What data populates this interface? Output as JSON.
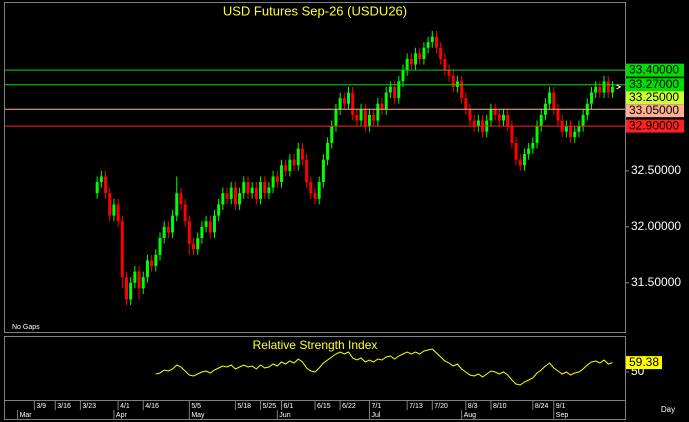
{
  "chart_data": [
    {
      "type": "candlestick",
      "title": "USD Futures Sep-26 (USDU26)",
      "annotation": "No Gaps",
      "up_color": "#00ff00",
      "down_color": "#ff0000",
      "x": [
        15,
        16,
        17,
        18,
        19,
        20,
        21,
        22,
        23,
        24,
        25,
        26,
        27,
        28,
        29,
        30,
        31,
        32,
        33,
        34,
        35,
        36,
        37,
        38,
        39,
        40,
        41,
        42,
        43,
        44,
        45,
        46,
        47,
        48,
        49,
        50,
        51,
        52,
        53,
        54,
        55,
        56,
        57,
        58,
        59,
        60,
        61,
        62,
        63,
        64,
        65,
        66,
        67,
        68,
        69,
        70,
        71,
        72,
        73,
        74,
        75,
        76,
        77,
        78,
        79,
        80,
        81,
        82,
        83,
        84,
        85,
        86,
        87,
        88,
        89,
        90,
        91,
        92,
        93,
        94,
        95,
        96,
        97,
        98,
        99,
        100,
        101,
        102,
        103,
        104,
        105,
        106,
        107,
        108,
        109,
        110,
        111,
        112,
        113,
        114,
        115,
        116,
        117,
        118,
        119,
        120,
        121,
        122,
        123,
        124,
        125,
        126,
        127,
        128,
        129,
        130,
        131,
        132,
        133,
        134,
        135,
        136,
        137,
        138
      ],
      "open": [
        32.3,
        32.4,
        32.45,
        32.3,
        32.1,
        32.2,
        32.05,
        31.55,
        31.35,
        31.5,
        31.6,
        31.45,
        31.55,
        31.7,
        31.65,
        31.75,
        31.9,
        32.0,
        31.95,
        32.1,
        32.3,
        32.2,
        32.05,
        31.85,
        31.8,
        31.9,
        32.0,
        32.05,
        31.95,
        32.1,
        32.2,
        32.3,
        32.25,
        32.35,
        32.2,
        32.3,
        32.4,
        32.3,
        32.35,
        32.25,
        32.4,
        32.3,
        32.35,
        32.45,
        32.4,
        32.55,
        32.5,
        32.6,
        32.55,
        32.7,
        32.6,
        32.4,
        32.3,
        32.25,
        32.4,
        32.6,
        32.75,
        32.9,
        33.05,
        33.15,
        33.1,
        33.2,
        33.0,
        32.95,
        33.05,
        32.9,
        33.0,
        32.95,
        33.1,
        33.05,
        33.2,
        33.25,
        33.15,
        33.3,
        33.4,
        33.5,
        33.45,
        33.55,
        33.5,
        33.6,
        33.65,
        33.7,
        33.6,
        33.5,
        33.4,
        33.35,
        33.25,
        33.3,
        33.15,
        33.05,
        32.95,
        32.9,
        32.95,
        32.85,
        32.95,
        33.05,
        33.0,
        32.95,
        33.0,
        32.9,
        32.75,
        32.6,
        32.55,
        32.65,
        32.7,
        32.75,
        32.9,
        33.0,
        33.1,
        33.2,
        33.05,
        32.95,
        32.85,
        32.9,
        32.8,
        32.85,
        32.9,
        33.0,
        33.1,
        33.2,
        33.25,
        33.2,
        33.3,
        33.2
      ],
      "high": [
        32.45,
        32.5,
        32.5,
        32.35,
        32.25,
        32.25,
        32.1,
        31.6,
        31.55,
        31.65,
        31.65,
        31.6,
        31.75,
        31.75,
        31.8,
        31.95,
        32.05,
        32.05,
        32.15,
        32.45,
        32.35,
        32.25,
        32.1,
        31.9,
        31.95,
        32.05,
        32.1,
        32.1,
        32.15,
        32.25,
        32.35,
        32.35,
        32.4,
        32.4,
        32.35,
        32.45,
        32.45,
        32.4,
        32.4,
        32.45,
        32.45,
        32.4,
        32.5,
        32.5,
        32.6,
        32.6,
        32.65,
        32.65,
        32.75,
        32.75,
        32.65,
        32.45,
        32.35,
        32.45,
        32.65,
        32.8,
        32.95,
        33.1,
        33.2,
        33.2,
        33.25,
        33.25,
        33.05,
        33.1,
        33.1,
        33.05,
        33.05,
        33.15,
        33.15,
        33.25,
        33.3,
        33.3,
        33.35,
        33.45,
        33.55,
        33.55,
        33.6,
        33.6,
        33.65,
        33.7,
        33.75,
        33.75,
        33.65,
        33.55,
        33.45,
        33.4,
        33.35,
        33.35,
        33.2,
        33.1,
        33.0,
        33.0,
        33.0,
        33.0,
        33.1,
        33.1,
        33.05,
        33.05,
        33.05,
        32.95,
        32.8,
        32.65,
        32.7,
        32.75,
        32.8,
        32.95,
        33.05,
        33.15,
        33.25,
        33.25,
        33.1,
        33.0,
        32.95,
        32.95,
        32.9,
        32.95,
        33.05,
        33.15,
        33.25,
        33.3,
        33.3,
        33.35,
        33.35,
        33.3
      ],
      "low": [
        32.25,
        32.35,
        32.25,
        32.05,
        32.05,
        32.0,
        31.45,
        31.3,
        31.3,
        31.45,
        31.35,
        31.4,
        31.5,
        31.6,
        31.6,
        31.7,
        31.85,
        31.9,
        31.9,
        32.05,
        32.15,
        32.0,
        31.75,
        31.75,
        31.75,
        31.85,
        31.95,
        31.9,
        31.9,
        32.05,
        32.15,
        32.2,
        32.2,
        32.15,
        32.15,
        32.25,
        32.25,
        32.25,
        32.2,
        32.2,
        32.25,
        32.25,
        32.3,
        32.35,
        32.35,
        32.45,
        32.45,
        32.5,
        32.5,
        32.55,
        32.35,
        32.25,
        32.2,
        32.2,
        32.35,
        32.55,
        32.7,
        32.85,
        33.0,
        33.05,
        33.05,
        32.95,
        32.9,
        32.9,
        32.85,
        32.85,
        32.9,
        32.9,
        33.0,
        33.0,
        33.15,
        33.1,
        33.1,
        33.25,
        33.35,
        33.4,
        33.4,
        33.45,
        33.45,
        33.55,
        33.6,
        33.55,
        33.45,
        33.35,
        33.3,
        33.2,
        33.2,
        33.1,
        33.0,
        32.9,
        32.85,
        32.85,
        32.8,
        32.8,
        32.9,
        32.95,
        32.9,
        32.9,
        32.85,
        32.7,
        32.55,
        32.5,
        32.5,
        32.6,
        32.65,
        32.7,
        32.85,
        32.95,
        33.05,
        33.0,
        32.9,
        32.8,
        32.8,
        32.75,
        32.75,
        32.8,
        32.85,
        32.95,
        33.05,
        33.15,
        33.15,
        33.15,
        33.15,
        33.15
      ],
      "close": [
        32.4,
        32.45,
        32.3,
        32.1,
        32.2,
        32.05,
        31.55,
        31.35,
        31.5,
        31.6,
        31.45,
        31.55,
        31.7,
        31.65,
        31.75,
        31.9,
        32.0,
        31.95,
        32.1,
        32.3,
        32.2,
        32.05,
        31.85,
        31.8,
        31.9,
        32.0,
        32.05,
        31.95,
        32.1,
        32.2,
        32.3,
        32.25,
        32.35,
        32.2,
        32.3,
        32.4,
        32.3,
        32.35,
        32.25,
        32.4,
        32.3,
        32.35,
        32.45,
        32.4,
        32.55,
        32.5,
        32.6,
        32.55,
        32.7,
        32.6,
        32.4,
        32.3,
        32.25,
        32.4,
        32.6,
        32.75,
        32.9,
        33.05,
        33.15,
        33.1,
        33.2,
        33.0,
        32.95,
        33.05,
        32.9,
        33.0,
        32.95,
        33.1,
        33.05,
        33.2,
        33.25,
        33.15,
        33.3,
        33.4,
        33.5,
        33.45,
        33.55,
        33.5,
        33.6,
        33.65,
        33.7,
        33.6,
        33.5,
        33.4,
        33.35,
        33.25,
        33.3,
        33.15,
        33.05,
        32.95,
        32.9,
        32.95,
        32.85,
        32.95,
        33.05,
        33.0,
        32.95,
        33.0,
        32.9,
        32.75,
        32.6,
        32.55,
        32.65,
        32.7,
        32.75,
        32.9,
        33.0,
        33.1,
        33.2,
        33.05,
        32.95,
        32.85,
        32.9,
        32.8,
        32.85,
        32.9,
        33.0,
        33.1,
        33.2,
        33.25,
        33.2,
        33.3,
        33.2,
        33.25
      ],
      "xlim": [
        -7,
        141
      ],
      "ylim": [
        31.06,
        34.0
      ],
      "yticks": [
        {
          "value": 31.5,
          "label": "31.50000"
        },
        {
          "value": 32.0,
          "label": "32.00000"
        },
        {
          "value": 32.5,
          "label": "32.50000"
        }
      ],
      "levels": [
        {
          "value": 33.4,
          "label": "33.40000",
          "color": "#00dd00"
        },
        {
          "value": 33.27,
          "label": "33.27000",
          "color": "#00dd00"
        },
        {
          "value": 33.05,
          "label": "33.05000",
          "color": "#ffb090"
        },
        {
          "value": 32.9,
          "label": "32.90000",
          "color": "#ff2020"
        }
      ],
      "last": {
        "value": 33.25,
        "label": "33.25000",
        "color": "#ccff33"
      }
    },
    {
      "type": "line",
      "title": "Relative Strength Index",
      "color": "#ffff00",
      "x": [
        29,
        30,
        31,
        32,
        33,
        34,
        35,
        36,
        37,
        38,
        39,
        40,
        41,
        42,
        43,
        44,
        45,
        46,
        47,
        48,
        49,
        50,
        51,
        52,
        53,
        54,
        55,
        56,
        57,
        58,
        59,
        60,
        61,
        62,
        63,
        64,
        65,
        66,
        67,
        68,
        69,
        70,
        71,
        72,
        73,
        74,
        75,
        76,
        77,
        78,
        79,
        80,
        81,
        82,
        83,
        84,
        85,
        86,
        87,
        88,
        89,
        90,
        91,
        92,
        93,
        94,
        95,
        96,
        97,
        98,
        99,
        100,
        101,
        102,
        103,
        104,
        105,
        106,
        107,
        108,
        109,
        110,
        111,
        112,
        113,
        114,
        115,
        116,
        117,
        118,
        119,
        120,
        121,
        122,
        123,
        124,
        125,
        126,
        127,
        128,
        129,
        130,
        131,
        132,
        133,
        134,
        135,
        136,
        137,
        138
      ],
      "values": [
        48,
        49,
        52,
        51,
        53,
        57,
        55,
        51,
        47,
        46,
        48,
        50,
        51,
        49,
        52,
        54,
        56,
        55,
        57,
        53,
        55,
        57,
        55,
        56,
        53,
        57,
        54,
        55,
        58,
        56,
        60,
        58,
        61,
        59,
        63,
        60,
        54,
        51,
        50,
        54,
        59,
        62,
        65,
        68,
        70,
        68,
        70,
        64,
        62,
        64,
        60,
        62,
        60,
        63,
        62,
        65,
        66,
        63,
        66,
        68,
        70,
        68,
        70,
        68,
        71,
        72,
        73,
        69,
        65,
        61,
        59,
        56,
        58,
        53,
        50,
        47,
        46,
        48,
        45,
        48,
        51,
        50,
        48,
        50,
        47,
        42,
        38,
        37,
        40,
        42,
        44,
        49,
        52,
        56,
        59,
        54,
        51,
        48,
        50,
        47,
        49,
        50,
        53,
        57,
        60,
        61,
        59,
        62,
        58,
        59.38
      ],
      "xlim": [
        -7,
        141
      ],
      "ylim": [
        22,
        85
      ],
      "yticks": [
        50
      ],
      "xlabel": "Day",
      "xticks": [
        {
          "value": 0,
          "label": "3/9"
        },
        {
          "value": 5,
          "label": "3/16"
        },
        {
          "value": 11,
          "label": "3/23"
        },
        {
          "value": 20,
          "label": "4/1"
        },
        {
          "value": 26,
          "label": "4/16"
        },
        {
          "value": 37,
          "label": "5/5"
        },
        {
          "value": 48,
          "label": "5/18"
        },
        {
          "value": 54,
          "label": "5/25"
        },
        {
          "value": 59,
          "label": "6/1"
        },
        {
          "value": 67,
          "label": "6/15"
        },
        {
          "value": 73,
          "label": "6/22"
        },
        {
          "value": 80,
          "label": "7/1"
        },
        {
          "value": 89,
          "label": "7/13"
        },
        {
          "value": 95,
          "label": "7/20"
        },
        {
          "value": 103,
          "label": "8/3"
        },
        {
          "value": 109,
          "label": "8/10"
        },
        {
          "value": 119,
          "label": "8/24"
        },
        {
          "value": 124,
          "label": "9/1"
        }
      ],
      "month_ticks": [
        {
          "value": -4,
          "label": "Mar"
        },
        {
          "value": 19,
          "label": "Apr"
        },
        {
          "value": 37,
          "label": "May"
        },
        {
          "value": 58,
          "label": "Jun"
        },
        {
          "value": 80,
          "label": "Jul"
        },
        {
          "value": 102,
          "label": "Aug"
        },
        {
          "value": 124,
          "label": "Sep"
        }
      ]
    }
  ]
}
